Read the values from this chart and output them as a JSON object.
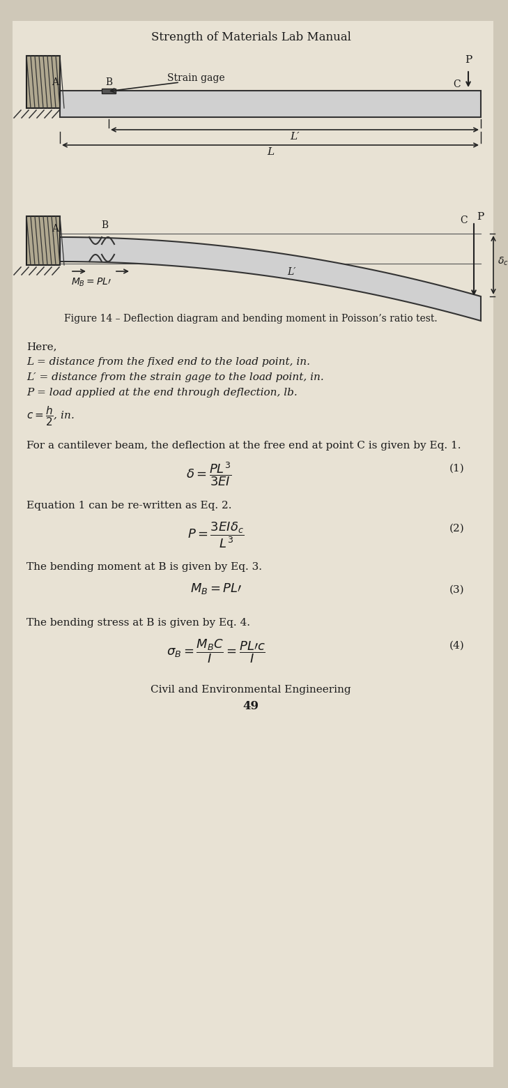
{
  "title": "Strength of Materials Lab Manual",
  "bg_color": "#cfc8b8",
  "page_bg": "#e8e2d4",
  "figure_caption": "Figure 14 – Deflection diagram and bending moment in Poisson’s ratio test.",
  "here_text": "Here,",
  "def1": "L = distance from the fixed end to the load point, in.",
  "def2": "L′ = distance from the strain gage to the load point, in.",
  "def3": "P = load applied at the end through deflection, lb.",
  "eq1_intro": "For a cantilever beam, the deflection at the free end at point C is given by Eq. 1.",
  "eq2_intro": "Equation 1 can be re-written as Eq. 2.",
  "eq3_intro": "The bending moment at B is given by Eq. 3.",
  "eq4_intro": "The bending stress at B is given by Eq. 4.",
  "footer_line1": "Civil and Environmental Engineering",
  "footer_line2": "49"
}
